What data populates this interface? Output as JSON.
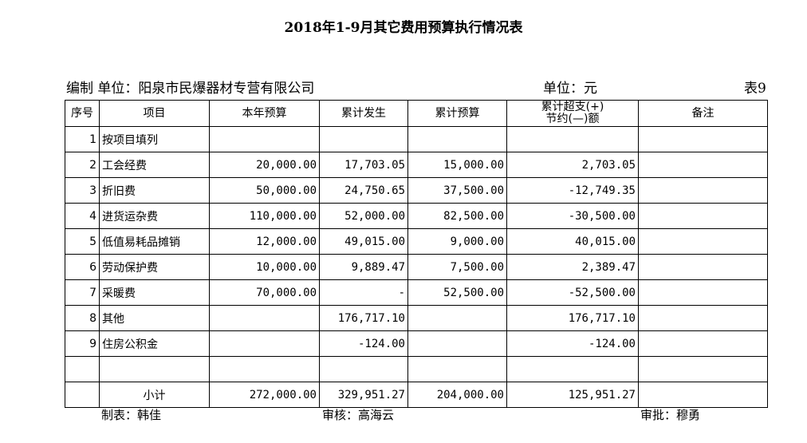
{
  "title": "2018年1-9月其它费用预算执行情况表",
  "header": {
    "org_label": "编制 单位：阳泉市民爆器材专营有限公司",
    "unit_label": "单位：元",
    "table_no": "表9"
  },
  "columns": {
    "no": "序号",
    "item": "项目",
    "annual_budget": "本年预算",
    "cumulative_actual": "累计发生",
    "cumulative_budget": "累计预算",
    "over_line1": "累计超支(+)",
    "over_line2": "节约(—)额",
    "remarks": "备注"
  },
  "rows": [
    {
      "no": "1",
      "item": "按项目填列",
      "annual_budget": "",
      "cumulative_actual": "",
      "cumulative_budget": "",
      "over_saving": "",
      "remarks": ""
    },
    {
      "no": "2",
      "item": "工会经费",
      "annual_budget": "20,000.00",
      "cumulative_actual": "17,703.05",
      "cumulative_budget": "15,000.00",
      "over_saving": "2,703.05",
      "remarks": ""
    },
    {
      "no": "3",
      "item": "折旧费",
      "annual_budget": "50,000.00",
      "cumulative_actual": "24,750.65",
      "cumulative_budget": "37,500.00",
      "over_saving": "-12,749.35",
      "remarks": ""
    },
    {
      "no": "4",
      "item": "进货运杂费",
      "annual_budget": "110,000.00",
      "cumulative_actual": "52,000.00",
      "cumulative_budget": "82,500.00",
      "over_saving": "-30,500.00",
      "remarks": ""
    },
    {
      "no": "5",
      "item": "低值易耗品摊销",
      "annual_budget": "12,000.00",
      "cumulative_actual": "49,015.00",
      "cumulative_budget": "9,000.00",
      "over_saving": "40,015.00",
      "remarks": ""
    },
    {
      "no": "6",
      "item": "劳动保护费",
      "annual_budget": "10,000.00",
      "cumulative_actual": "9,889.47",
      "cumulative_budget": "7,500.00",
      "over_saving": "2,389.47",
      "remarks": ""
    },
    {
      "no": "7",
      "item": "采暖费",
      "annual_budget": "70,000.00",
      "cumulative_actual": "-",
      "cumulative_budget": "52,500.00",
      "over_saving": "-52,500.00",
      "remarks": ""
    },
    {
      "no": "8",
      "item": "其他",
      "annual_budget": "",
      "cumulative_actual": "176,717.10",
      "cumulative_budget": "",
      "over_saving": "176,717.10",
      "remarks": ""
    },
    {
      "no": "9",
      "item": "住房公积金",
      "annual_budget": "",
      "cumulative_actual": "-124.00",
      "cumulative_budget": "",
      "over_saving": "-124.00",
      "remarks": ""
    },
    {
      "no": "",
      "item": "",
      "annual_budget": "",
      "cumulative_actual": "",
      "cumulative_budget": "",
      "over_saving": "",
      "remarks": ""
    }
  ],
  "subtotal": {
    "label": "小计",
    "annual_budget": "272,000.00",
    "cumulative_actual": "329,951.27",
    "cumulative_budget": "204,000.00",
    "over_saving": "125,951.27",
    "remarks": ""
  },
  "footer": {
    "prepared_by": "制表：韩佳",
    "reviewed_by": "审核：高海云",
    "approved_by": "审批：穆勇"
  }
}
